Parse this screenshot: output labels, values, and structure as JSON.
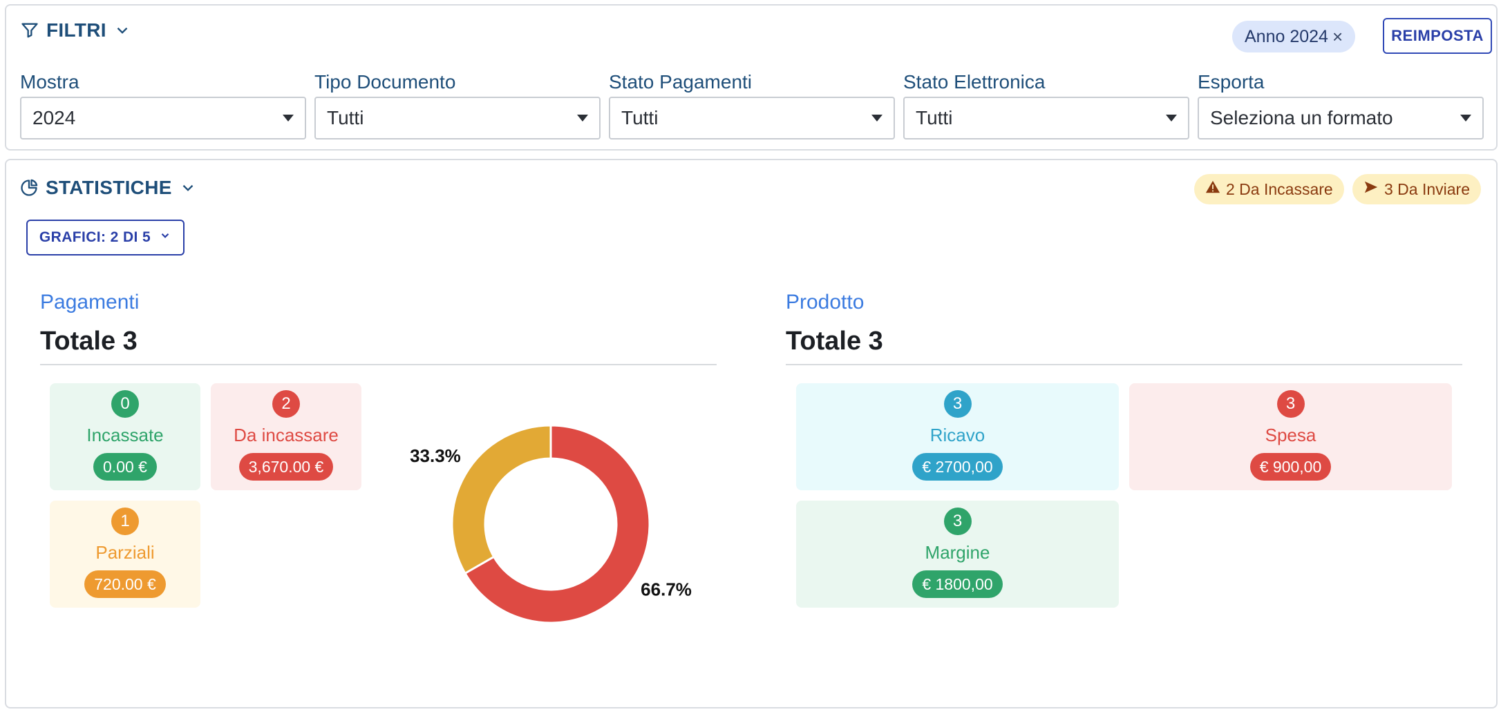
{
  "filters": {
    "title": "FILTRI",
    "active_chip": "Anno 2024",
    "reset_label": "REIMPOSTA",
    "groups": [
      {
        "label": "Mostra",
        "value": "2024"
      },
      {
        "label": "Tipo Documento",
        "value": "Tutti"
      },
      {
        "label": "Stato Pagamenti",
        "value": "Tutti"
      },
      {
        "label": "Stato Elettronica",
        "value": "Tutti"
      },
      {
        "label": "Esporta",
        "value": "Seleziona un formato"
      }
    ]
  },
  "stats": {
    "title": "STATISTICHE",
    "badges": {
      "incassare": "2 Da Incassare",
      "inviare": "3 Da Inviare"
    },
    "charts_dropdown": "GRAFICI: 2 DI 5",
    "pagamenti": {
      "title": "Pagamenti",
      "total": "Totale 3",
      "tiles": {
        "incassate": {
          "count": "0",
          "label": "Incassate",
          "amount": "0.00 €"
        },
        "da_incassare": {
          "count": "2",
          "label": "Da incassare",
          "amount": "3,670.00 €"
        },
        "parziali": {
          "count": "1",
          "label": "Parziali",
          "amount": "720.00 €"
        }
      }
    },
    "prodotto": {
      "title": "Prodotto",
      "total": "Totale 3",
      "tiles": {
        "ricavo": {
          "count": "3",
          "label": "Ricavo",
          "amount": "€ 2700,00"
        },
        "spesa": {
          "count": "3",
          "label": "Spesa",
          "amount": "€ 900,00"
        },
        "margine": {
          "count": "3",
          "label": "Margine",
          "amount": "€ 1800,00"
        }
      }
    }
  },
  "chart_data": {
    "type": "pie",
    "series": [
      {
        "value": 66.7,
        "label": "66.7%",
        "color": "#de4a43"
      },
      {
        "value": 33.3,
        "label": "33.3%",
        "color": "#e2a935"
      }
    ]
  },
  "colors": {
    "accent": "#1e4e79",
    "primary_button": "#2a3fa8",
    "success": "#2fa46a",
    "danger": "#de4a43",
    "warning": "#ee9a30",
    "info": "#2fa3c9"
  }
}
